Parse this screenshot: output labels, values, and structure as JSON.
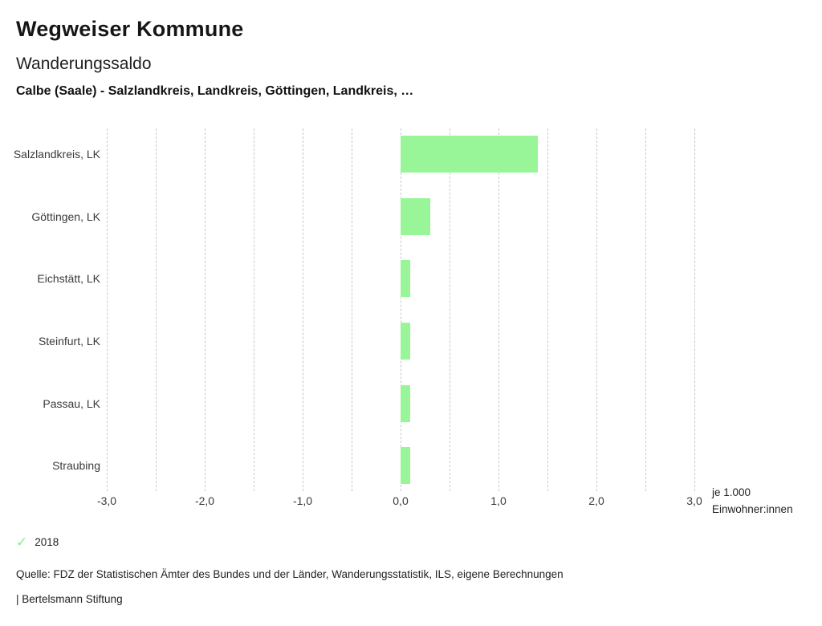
{
  "header": {
    "title": "Wegweiser Kommune",
    "subtitle": "Wanderungssaldo",
    "comparison": "Calbe (Saale) - Salzlandkreis, Landkreis, Göttingen, Landkreis, …"
  },
  "chart_data": {
    "type": "bar",
    "orientation": "horizontal",
    "title": "Wanderungssaldo",
    "subtitle": "Calbe (Saale) - Salzlandkreis, Landkreis, Göttingen, Landkreis, …",
    "categories": [
      "Salzlandkreis, LK",
      "Göttingen, LK",
      "Eichstätt, LK",
      "Steinfurt, LK",
      "Passau, LK",
      "Straubing"
    ],
    "series": [
      {
        "name": "2018",
        "values": [
          1.4,
          0.3,
          0.1,
          0.1,
          0.1,
          0.1
        ],
        "color": "#98f598"
      }
    ],
    "xlim": [
      -3.0,
      3.0
    ],
    "x_tick_values": [
      -3,
      -2,
      -1,
      0,
      1,
      2,
      3
    ],
    "x_tick_labels": [
      "-3,0",
      "-2,0",
      "-1,0",
      "0,0",
      "1,0",
      "2,0",
      "3,0"
    ],
    "grid_step": 0.5,
    "grid": true,
    "gridline_color": "#c9c9c9",
    "xlabel": "je 1.000 Einwohner:innen",
    "unit_label": [
      "je 1.000",
      "Einwohner:innen"
    ],
    "legend_position": "bottom-left",
    "decimal_format": "comma"
  },
  "legend": {
    "items": [
      {
        "label": "2018",
        "icon": "check-icon",
        "icon_glyph": "✓",
        "color": "#8be88b",
        "active": true
      }
    ]
  },
  "footer": {
    "source": "Quelle: FDZ der Statistischen Ämter des Bundes und der Länder, Wanderungsstatistik, ILS, eigene Berechnungen",
    "attribution": "| Bertelsmann Stiftung"
  }
}
